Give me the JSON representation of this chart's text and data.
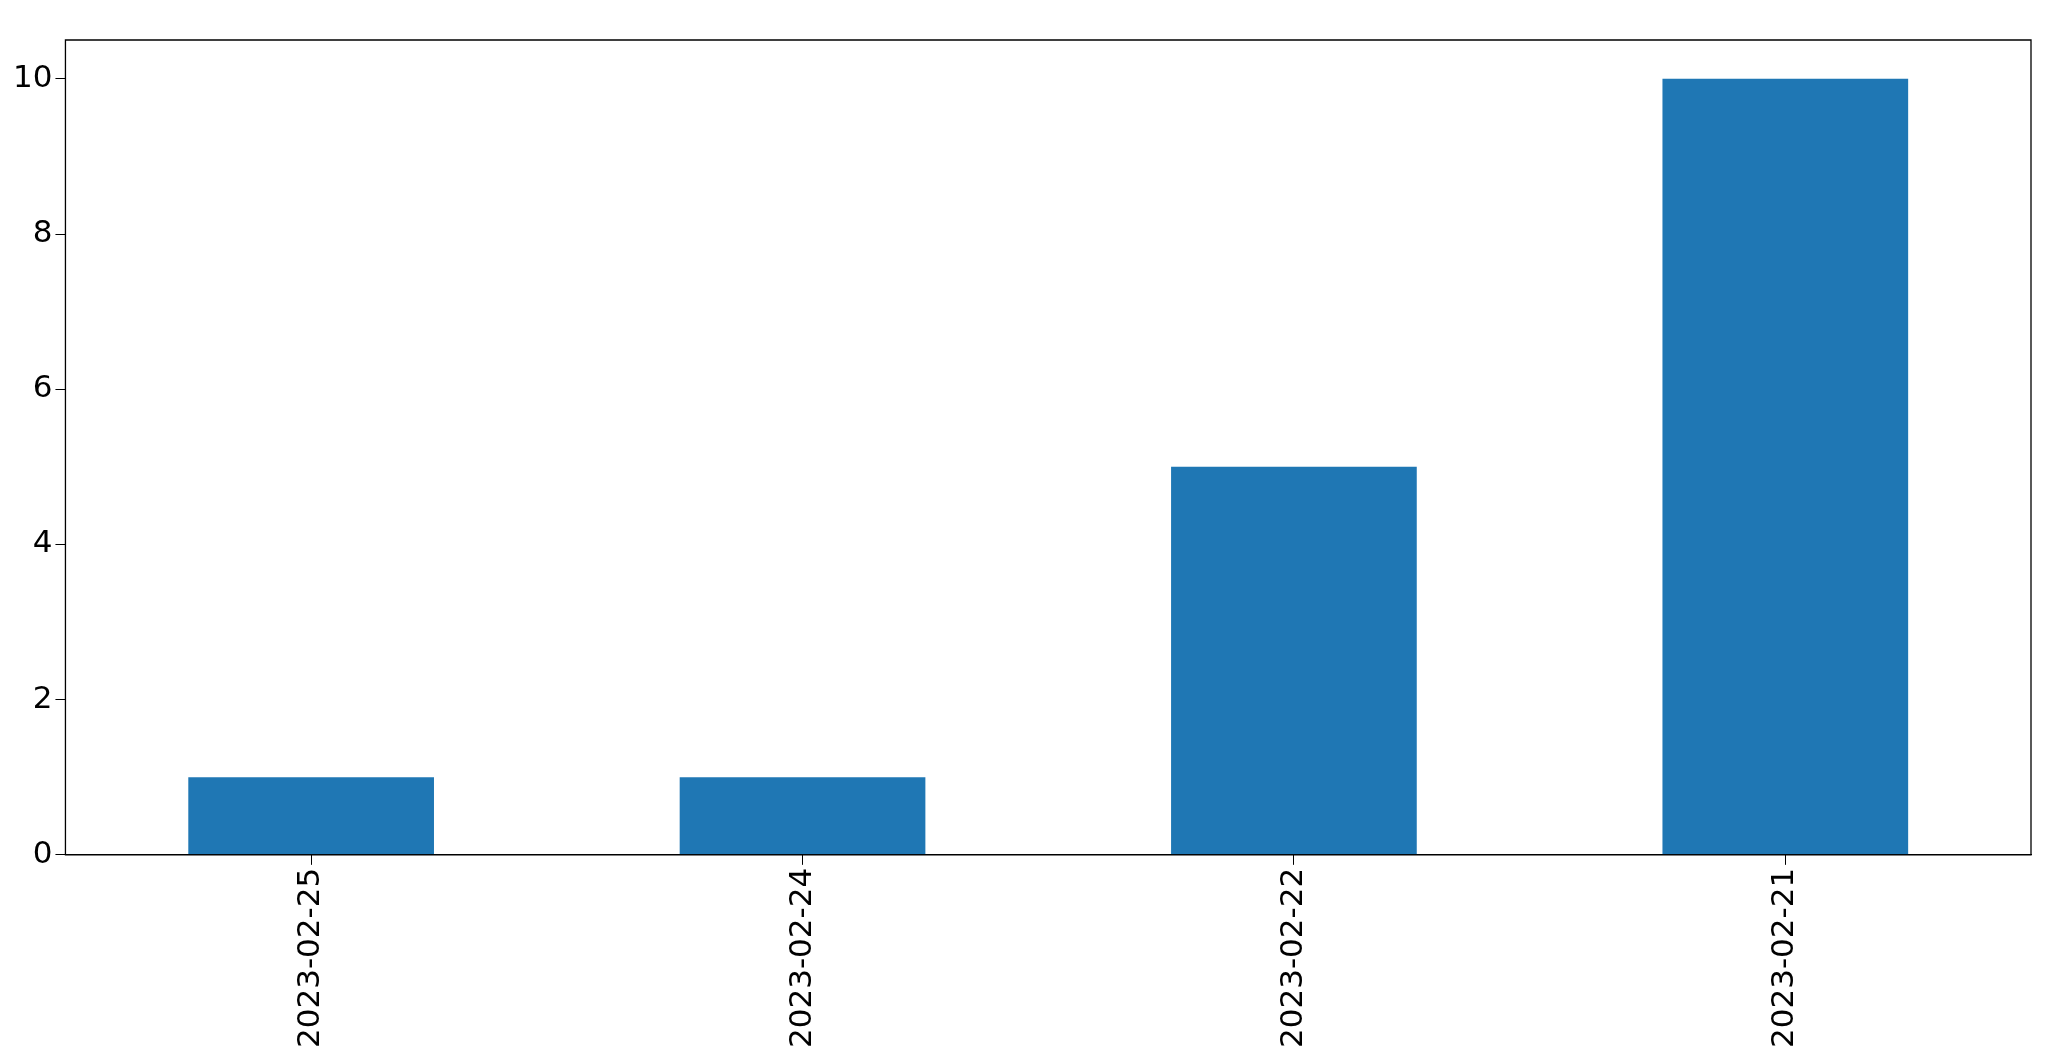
{
  "chart_data": {
    "type": "bar",
    "categories": [
      "2023-02-25",
      "2023-02-24",
      "2023-02-22",
      "2023-02-21"
    ],
    "values": [
      1,
      1,
      5,
      10
    ],
    "color": "#1f77b4",
    "ylim": [
      0,
      10.5
    ],
    "yticks": [
      0,
      2,
      4,
      6,
      8,
      10
    ],
    "grid": false,
    "legend": false
  }
}
